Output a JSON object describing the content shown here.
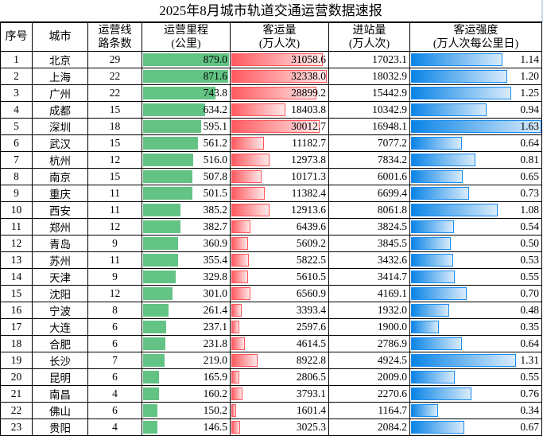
{
  "title": "2025年8月城市轨道交通运营数据速报",
  "headers": {
    "seq": "序号",
    "city": "城市",
    "lines": [
      "运营线",
      "路条数"
    ],
    "mileage": [
      "运营里程",
      "(公里)"
    ],
    "ridership": [
      "客运量",
      "(万人次)"
    ],
    "entries": [
      "进站量",
      "(万人次)"
    ],
    "intensity": [
      "客运强度",
      "(万人次每公里日)"
    ]
  },
  "colors": {
    "mileage_bar": "#63c384",
    "ridership_bar": "#ff5a5f",
    "intensity_bar": "#0a84e6"
  },
  "rows": [
    [
      "1",
      "北京",
      "29",
      "879.0",
      "31058.6",
      "17023.1",
      "1.14"
    ],
    [
      "2",
      "上海",
      "22",
      "871.6",
      "32338.0",
      "18032.9",
      "1.20"
    ],
    [
      "3",
      "广州",
      "22",
      "743.8",
      "28899.2",
      "15442.9",
      "1.25"
    ],
    [
      "4",
      "成都",
      "15",
      "634.2",
      "18403.8",
      "10342.9",
      "0.94"
    ],
    [
      "5",
      "深圳",
      "18",
      "595.1",
      "30012.7",
      "16948.1",
      "1.63"
    ],
    [
      "6",
      "武汉",
      "15",
      "561.2",
      "11182.7",
      "7077.2",
      "0.64"
    ],
    [
      "7",
      "杭州",
      "12",
      "516.0",
      "12973.8",
      "7834.2",
      "0.81"
    ],
    [
      "8",
      "南京",
      "15",
      "507.8",
      "10171.3",
      "6001.6",
      "0.65"
    ],
    [
      "9",
      "重庆",
      "11",
      "501.5",
      "11382.4",
      "6699.4",
      "0.73"
    ],
    [
      "10",
      "西安",
      "11",
      "385.2",
      "12913.6",
      "8061.8",
      "1.08"
    ],
    [
      "11",
      "郑州",
      "12",
      "382.7",
      "6439.6",
      "3824.5",
      "0.54"
    ],
    [
      "12",
      "青岛",
      "9",
      "360.9",
      "5609.2",
      "3845.5",
      "0.50"
    ],
    [
      "13",
      "苏州",
      "11",
      "355.4",
      "5822.5",
      "3432.6",
      "0.53"
    ],
    [
      "14",
      "天津",
      "9",
      "329.8",
      "5610.5",
      "3414.7",
      "0.55"
    ],
    [
      "15",
      "沈阳",
      "12",
      "301.0",
      "6560.9",
      "4169.1",
      "0.70"
    ],
    [
      "16",
      "宁波",
      "8",
      "261.4",
      "3393.4",
      "1932.0",
      "0.48"
    ],
    [
      "17",
      "大连",
      "6",
      "237.1",
      "2597.6",
      "1900.0",
      "0.35"
    ],
    [
      "18",
      "合肥",
      "6",
      "231.8",
      "4614.5",
      "2786.9",
      "0.64"
    ],
    [
      "19",
      "长沙",
      "7",
      "219.0",
      "8922.8",
      "4924.5",
      "1.31"
    ],
    [
      "20",
      "昆明",
      "6",
      "165.9",
      "2806.5",
      "2009.0",
      "0.55"
    ],
    [
      "21",
      "南昌",
      "4",
      "160.2",
      "3793.1",
      "2270.6",
      "0.76"
    ],
    [
      "22",
      "佛山",
      "6",
      "150.2",
      "1601.4",
      "1164.7",
      "0.34"
    ],
    [
      "23",
      "贵阳",
      "4",
      "146.5",
      "3025.3",
      "2084.2",
      "0.67"
    ]
  ]
}
